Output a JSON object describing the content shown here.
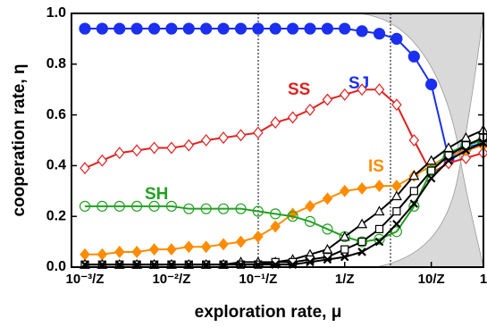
{
  "chart_data": {
    "type": "line",
    "x_label": "exploration rate, μ",
    "y_label": "cooperation rate, η",
    "xscale": "log",
    "x": [
      2.5e-05,
      3.96e-05,
      6.28e-05,
      9.95e-05,
      0.000158,
      0.00025,
      0.000396,
      0.000628,
      0.000995,
      0.00158,
      0.0025,
      0.00396,
      0.00628,
      0.00995,
      0.0158,
      0.025,
      0.0396,
      0.0628,
      0.0995,
      0.158,
      0.25,
      0.396,
      0.628,
      0.995
    ],
    "xlim": [
      1.75e-05,
      1
    ],
    "xticks": [
      {
        "value": 2.5e-05,
        "label": "10⁻³/Z"
      },
      {
        "value": 0.00025,
        "label": "10⁻²/Z"
      },
      {
        "value": 0.0025,
        "label": "10⁻¹/Z"
      },
      {
        "value": 0.025,
        "label": "1/Z"
      },
      {
        "value": 0.25,
        "label": "10/Z"
      },
      1
    ],
    "ylim": [
      0,
      1
    ],
    "yticks": [
      {
        "value": 0,
        "label": "0.0"
      },
      {
        "value": 0.2,
        "label": "0.2"
      },
      {
        "value": 0.4,
        "label": "0.4"
      },
      {
        "value": 0.6,
        "label": "0.6"
      },
      {
        "value": 0.8,
        "label": "0.8"
      },
      {
        "value": 1,
        "label": "1.0"
      }
    ],
    "series": [
      {
        "name": "SJ",
        "color": "#1a2ff0",
        "marker": "dot",
        "values": [
          0.94,
          0.94,
          0.94,
          0.94,
          0.94,
          0.94,
          0.94,
          0.94,
          0.94,
          0.94,
          0.94,
          0.94,
          0.94,
          0.94,
          0.94,
          0.94,
          0.93,
          0.92,
          0.9,
          0.83,
          0.72,
          0.43,
          0.47,
          0.49
        ]
      },
      {
        "name": "SS",
        "color": "#e02020",
        "marker": "diamond",
        "values": [
          0.39,
          0.42,
          0.45,
          0.46,
          0.47,
          0.47,
          0.48,
          0.5,
          0.51,
          0.52,
          0.53,
          0.57,
          0.59,
          0.62,
          0.66,
          0.68,
          0.7,
          0.7,
          0.64,
          0.5,
          0.37,
          0.41,
          0.43,
          0.45
        ]
      },
      {
        "name": "IS",
        "color": "#ff8c00",
        "marker": "filled-diamond",
        "values": [
          0.05,
          0.05,
          0.06,
          0.06,
          0.07,
          0.07,
          0.08,
          0.08,
          0.09,
          0.1,
          0.12,
          0.16,
          0.21,
          0.24,
          0.27,
          0.3,
          0.31,
          0.32,
          0.32,
          0.36,
          0.4,
          0.44,
          0.46,
          0.48
        ]
      },
      {
        "name": "SH",
        "color": "#22a020",
        "marker": "circle",
        "values": [
          0.24,
          0.24,
          0.24,
          0.24,
          0.24,
          0.24,
          0.23,
          0.23,
          0.23,
          0.23,
          0.22,
          0.21,
          0.2,
          0.18,
          0.15,
          0.12,
          0.1,
          0.11,
          0.14,
          0.24,
          0.38,
          0.45,
          0.48,
          0.5
        ]
      },
      {
        "color": "#000000",
        "marker": "triangle",
        "values": [
          0.01,
          0.01,
          0.01,
          0.01,
          0.01,
          0.01,
          0.01,
          0.01,
          0.01,
          0.02,
          0.02,
          0.02,
          0.03,
          0.05,
          0.07,
          0.12,
          0.17,
          0.22,
          0.28,
          0.36,
          0.42,
          0.47,
          0.51,
          0.54
        ]
      },
      {
        "color": "#000000",
        "marker": "square",
        "values": [
          0.01,
          0.01,
          0.01,
          0.01,
          0.01,
          0.01,
          0.01,
          0.01,
          0.01,
          0.01,
          0.01,
          0.02,
          0.02,
          0.03,
          0.04,
          0.07,
          0.1,
          0.15,
          0.22,
          0.3,
          0.38,
          0.44,
          0.48,
          0.51
        ]
      },
      {
        "color": "#000000",
        "marker": "cross",
        "values": [
          0.01,
          0.01,
          0.01,
          0.01,
          0.01,
          0.01,
          0.01,
          0.01,
          0.01,
          0.01,
          0.01,
          0.01,
          0.01,
          0.02,
          0.03,
          0.04,
          0.06,
          0.1,
          0.17,
          0.25,
          0.35,
          0.42,
          0.46,
          0.49
        ]
      }
    ]
  }
}
